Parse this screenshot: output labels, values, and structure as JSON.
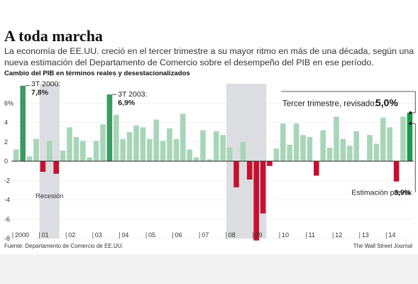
{
  "header": {
    "title": "A toda marcha",
    "subtitle": "La economía de EE.UU. creció en el tercer trimestre a su mayor ritmo en más de una década, según una nueva estimación del Departamento de Comercio sobre el desempeño del PIB en ese período.",
    "chart_label": "Cambio del PIB en términos reales y desestacionalizados"
  },
  "footer": {
    "source": "Fuente: Departamento de Comercio de EE.UU.",
    "credit": "The Wall Street Journal"
  },
  "colors": {
    "positive": "#a8d5b8",
    "negative": "#c8102e",
    "highlight": "#3d9a63",
    "current": "#1a9a4c",
    "shade": "#dcdde0",
    "axis": "#222222"
  },
  "chart_data": {
    "type": "bar",
    "title": "Cambio del PIB en términos reales y desestacionalizados",
    "ylim": [
      -8,
      8
    ],
    "y_ticks": [
      "-8",
      "-6",
      "-4",
      "-2",
      "0",
      "2",
      "4",
      "6%"
    ],
    "x_tick_labels": [
      "2000",
      "01",
      "02",
      "03",
      "04",
      "05",
      "06",
      "07",
      "08",
      "09",
      "10",
      "11",
      "12",
      "13",
      "14"
    ],
    "values": [
      1.2,
      7.8,
      0.5,
      2.3,
      -1.1,
      2.1,
      -1.3,
      1.1,
      3.5,
      2.5,
      2.1,
      0.4,
      2.1,
      3.8,
      6.9,
      4.8,
      2.3,
      3.0,
      3.7,
      3.5,
      2.3,
      4.3,
      2.1,
      3.4,
      2.3,
      4.9,
      1.2,
      0.4,
      3.2,
      0.2,
      3.1,
      2.7,
      1.4,
      -2.7,
      2.0,
      -1.9,
      -8.2,
      -5.4,
      -0.5,
      1.3,
      3.9,
      1.7,
      3.9,
      2.7,
      2.5,
      -1.5,
      3.2,
      1.4,
      4.6,
      2.3,
      1.6,
      3.1,
      0.1,
      2.7,
      1.8,
      4.5,
      3.5,
      -2.1,
      4.6,
      5.0
    ],
    "shaded_periods": [
      {
        "label": "Recesión",
        "start_index": 4,
        "end_index": 6
      },
      {
        "label": "",
        "start_index": 32,
        "end_index": 37
      }
    ],
    "annotations": [
      {
        "index": 1,
        "label": "3T 2000:",
        "value_label": "7,8%"
      },
      {
        "index": 14,
        "label": "3T 2003:",
        "value_label": "6,9%"
      },
      {
        "index": 59,
        "label": "Tercer trimestre, revisado:",
        "value_label": "5,0%"
      },
      {
        "index": 59,
        "label": "Estimación previa:",
        "value_label": "3,9%",
        "value": 3.9
      }
    ]
  }
}
